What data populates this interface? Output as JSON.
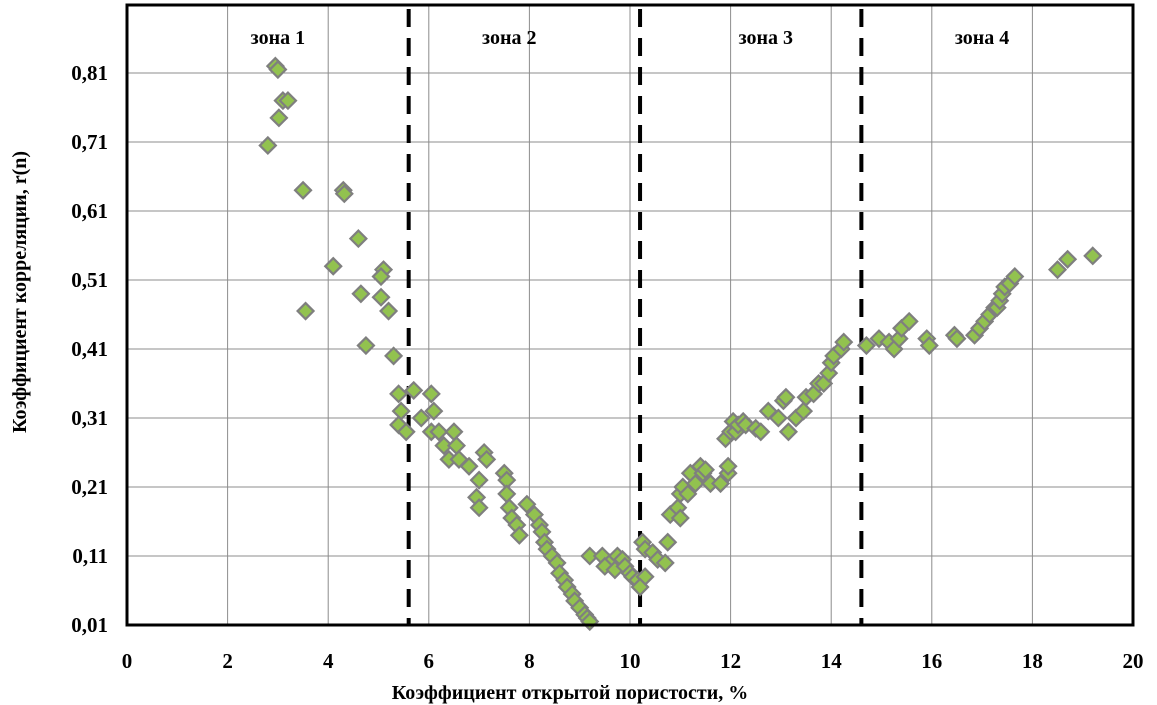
{
  "chart_data": {
    "type": "scatter",
    "xlabel": "Коэффициент открытой пористости, %",
    "ylabel": "Коэффициент корреляции, r(n)",
    "xlim": [
      0,
      20
    ],
    "ylim": [
      0.01,
      0.91
    ],
    "x_ticks": [
      0,
      2,
      4,
      6,
      8,
      10,
      12,
      14,
      16,
      18,
      20
    ],
    "x_tick_labels": [
      "0",
      "2",
      "4",
      "6",
      "8",
      "10",
      "12",
      "14",
      "16",
      "18",
      "20"
    ],
    "y_ticks": [
      0.01,
      0.11,
      0.21,
      0.31,
      0.41,
      0.51,
      0.61,
      0.71,
      0.81
    ],
    "y_tick_labels": [
      "0,01",
      "0,11",
      "0,21",
      "0,31",
      "0,41",
      "0,51",
      "0,61",
      "0,71",
      "0,81"
    ],
    "grid": true,
    "marker": "diamond",
    "marker_color": "#92C24F",
    "marker_edge_color": "#7F7F7F",
    "zone_boundaries": [
      5.6,
      10.2,
      14.6
    ],
    "zones": [
      {
        "label": "зона 1",
        "x": 3.0
      },
      {
        "label": "зона 2",
        "x": 7.6
      },
      {
        "label": "зона 3",
        "x": 12.7
      },
      {
        "label": "зона 4",
        "x": 17.0
      }
    ],
    "points": [
      [
        2.95,
        0.82
      ],
      [
        3.0,
        0.815
      ],
      [
        3.1,
        0.77
      ],
      [
        3.2,
        0.77
      ],
      [
        3.02,
        0.745
      ],
      [
        2.8,
        0.705
      ],
      [
        3.5,
        0.64
      ],
      [
        4.3,
        0.64
      ],
      [
        4.32,
        0.635
      ],
      [
        4.6,
        0.57
      ],
      [
        4.1,
        0.53
      ],
      [
        5.1,
        0.525
      ],
      [
        5.05,
        0.515
      ],
      [
        4.65,
        0.49
      ],
      [
        5.05,
        0.485
      ],
      [
        3.55,
        0.465
      ],
      [
        5.2,
        0.465
      ],
      [
        4.75,
        0.415
      ],
      [
        5.3,
        0.4
      ],
      [
        5.4,
        0.345
      ],
      [
        5.7,
        0.35
      ],
      [
        6.05,
        0.345
      ],
      [
        5.45,
        0.32
      ],
      [
        5.85,
        0.31
      ],
      [
        6.1,
        0.32
      ],
      [
        5.4,
        0.3
      ],
      [
        5.55,
        0.29
      ],
      [
        6.05,
        0.29
      ],
      [
        6.2,
        0.29
      ],
      [
        6.5,
        0.29
      ],
      [
        6.3,
        0.27
      ],
      [
        6.55,
        0.27
      ],
      [
        6.4,
        0.25
      ],
      [
        6.6,
        0.25
      ],
      [
        6.8,
        0.24
      ],
      [
        7.1,
        0.26
      ],
      [
        7.15,
        0.25
      ],
      [
        7.0,
        0.22
      ],
      [
        7.5,
        0.23
      ],
      [
        7.55,
        0.22
      ],
      [
        7.55,
        0.2
      ],
      [
        6.95,
        0.195
      ],
      [
        7.0,
        0.18
      ],
      [
        7.6,
        0.18
      ],
      [
        7.65,
        0.165
      ],
      [
        7.75,
        0.155
      ],
      [
        7.8,
        0.14
      ],
      [
        7.95,
        0.185
      ],
      [
        8.1,
        0.17
      ],
      [
        8.2,
        0.155
      ],
      [
        8.25,
        0.145
      ],
      [
        8.3,
        0.13
      ],
      [
        8.35,
        0.12
      ],
      [
        8.45,
        0.11
      ],
      [
        8.55,
        0.1
      ],
      [
        8.6,
        0.085
      ],
      [
        8.7,
        0.075
      ],
      [
        8.75,
        0.065
      ],
      [
        8.85,
        0.055
      ],
      [
        8.9,
        0.045
      ],
      [
        9.0,
        0.035
      ],
      [
        9.1,
        0.025
      ],
      [
        9.15,
        0.02
      ],
      [
        9.2,
        0.015
      ],
      [
        9.2,
        0.11
      ],
      [
        9.45,
        0.11
      ],
      [
        9.6,
        0.1
      ],
      [
        9.75,
        0.11
      ],
      [
        9.85,
        0.105
      ],
      [
        9.5,
        0.095
      ],
      [
        9.7,
        0.09
      ],
      [
        9.9,
        0.095
      ],
      [
        10.0,
        0.085
      ],
      [
        10.05,
        0.08
      ],
      [
        10.15,
        0.075
      ],
      [
        10.3,
        0.08
      ],
      [
        10.2,
        0.065
      ],
      [
        10.25,
        0.13
      ],
      [
        10.3,
        0.12
      ],
      [
        10.45,
        0.115
      ],
      [
        10.55,
        0.105
      ],
      [
        10.7,
        0.1
      ],
      [
        10.75,
        0.13
      ],
      [
        10.8,
        0.17
      ],
      [
        10.95,
        0.18
      ],
      [
        11.0,
        0.165
      ],
      [
        11.0,
        0.2
      ],
      [
        11.05,
        0.21
      ],
      [
        11.15,
        0.2
      ],
      [
        11.2,
        0.23
      ],
      [
        11.3,
        0.215
      ],
      [
        11.4,
        0.24
      ],
      [
        11.45,
        0.23
      ],
      [
        11.5,
        0.235
      ],
      [
        11.6,
        0.215
      ],
      [
        11.8,
        0.215
      ],
      [
        11.95,
        0.23
      ],
      [
        11.9,
        0.28
      ],
      [
        11.95,
        0.24
      ],
      [
        12.0,
        0.29
      ],
      [
        12.05,
        0.305
      ],
      [
        12.1,
        0.29
      ],
      [
        12.15,
        0.3
      ],
      [
        12.25,
        0.305
      ],
      [
        12.3,
        0.3
      ],
      [
        12.5,
        0.295
      ],
      [
        12.6,
        0.29
      ],
      [
        12.75,
        0.32
      ],
      [
        12.95,
        0.31
      ],
      [
        13.05,
        0.335
      ],
      [
        13.1,
        0.34
      ],
      [
        13.15,
        0.29
      ],
      [
        13.3,
        0.31
      ],
      [
        13.45,
        0.32
      ],
      [
        13.5,
        0.34
      ],
      [
        13.65,
        0.345
      ],
      [
        13.75,
        0.36
      ],
      [
        13.85,
        0.36
      ],
      [
        13.95,
        0.375
      ],
      [
        14.0,
        0.39
      ],
      [
        14.05,
        0.4
      ],
      [
        14.2,
        0.41
      ],
      [
        14.25,
        0.42
      ],
      [
        14.7,
        0.415
      ],
      [
        14.95,
        0.425
      ],
      [
        15.15,
        0.42
      ],
      [
        15.25,
        0.41
      ],
      [
        15.35,
        0.425
      ],
      [
        15.4,
        0.44
      ],
      [
        15.55,
        0.45
      ],
      [
        15.9,
        0.425
      ],
      [
        15.95,
        0.415
      ],
      [
        16.45,
        0.43
      ],
      [
        16.5,
        0.425
      ],
      [
        16.85,
        0.43
      ],
      [
        16.95,
        0.44
      ],
      [
        17.05,
        0.45
      ],
      [
        17.15,
        0.46
      ],
      [
        17.25,
        0.47
      ],
      [
        17.3,
        0.47
      ],
      [
        17.35,
        0.48
      ],
      [
        17.4,
        0.49
      ],
      [
        17.45,
        0.5
      ],
      [
        17.55,
        0.505
      ],
      [
        17.65,
        0.515
      ],
      [
        18.5,
        0.525
      ],
      [
        18.7,
        0.54
      ],
      [
        19.2,
        0.545
      ]
    ]
  }
}
